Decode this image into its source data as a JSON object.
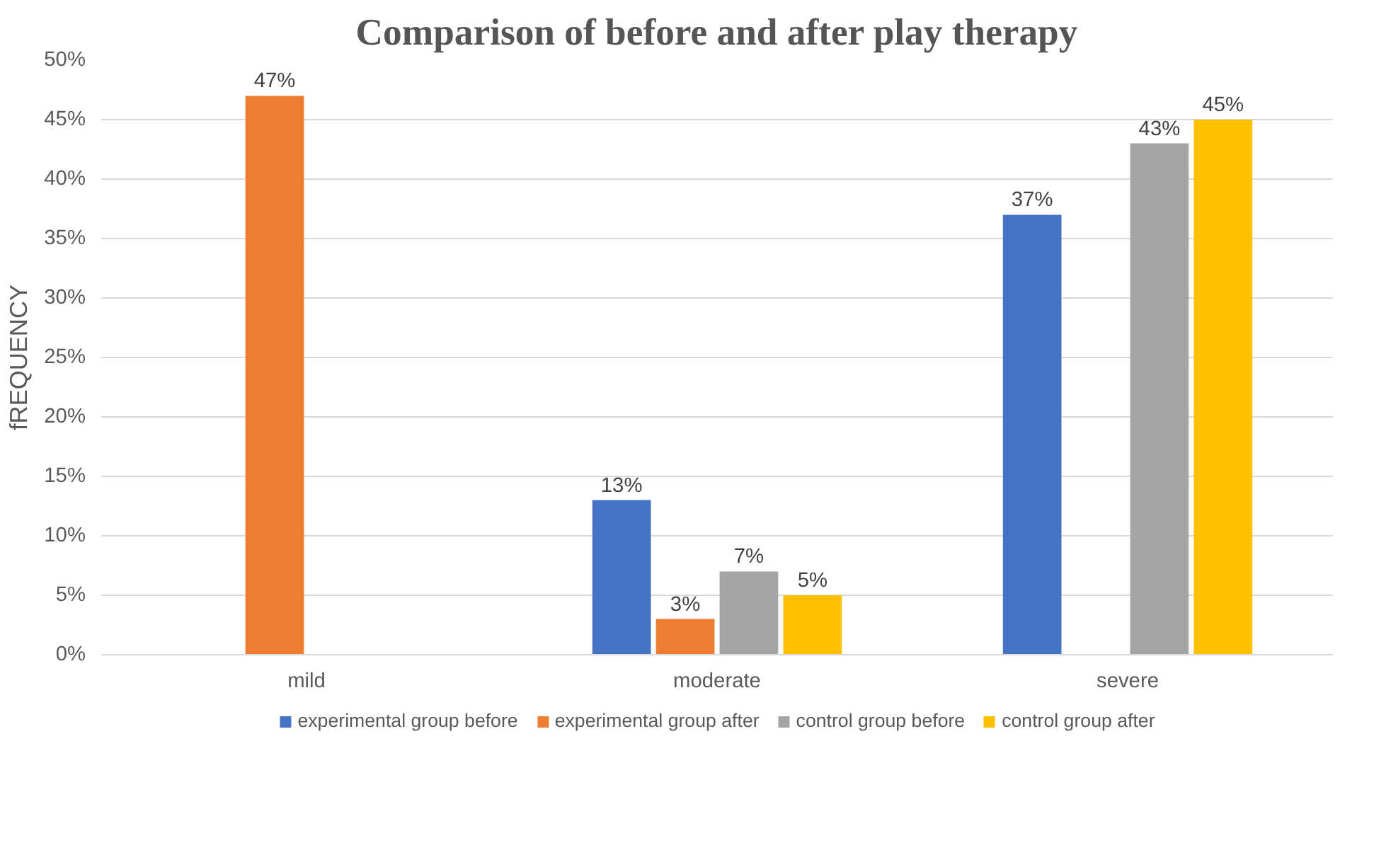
{
  "chart_data": {
    "type": "bar",
    "title": "Comparison of before and after play therapy",
    "ylabel": "fREQUENCY",
    "categories": [
      "mild",
      "moderate",
      "severe"
    ],
    "series": [
      {
        "name": "experimental group before",
        "color": "#4472c4",
        "values": [
          null,
          13,
          37
        ],
        "value_labels": [
          null,
          "13%",
          "37%"
        ]
      },
      {
        "name": "experimental group after",
        "color": "#ed7d31",
        "values": [
          47,
          3,
          null
        ],
        "value_labels": [
          "47%",
          "3%",
          null
        ]
      },
      {
        "name": "control group before",
        "color": "#a5a5a5",
        "values": [
          null,
          7,
          43
        ],
        "value_labels": [
          null,
          "7%",
          "43%"
        ]
      },
      {
        "name": "control group after",
        "color": "#ffc000",
        "values": [
          null,
          5,
          45
        ],
        "value_labels": [
          null,
          "5%",
          "45%"
        ]
      }
    ],
    "ylim": [
      0,
      50
    ],
    "yticks": [
      {
        "value": 0,
        "label": "0%"
      },
      {
        "value": 5,
        "label": "5%"
      },
      {
        "value": 10,
        "label": "10%"
      },
      {
        "value": 15,
        "label": "15%"
      },
      {
        "value": 20,
        "label": "20%"
      },
      {
        "value": 25,
        "label": "25%"
      },
      {
        "value": 30,
        "label": "30%"
      },
      {
        "value": 35,
        "label": "35%"
      },
      {
        "value": 40,
        "label": "40%"
      },
      {
        "value": 45,
        "label": "45%"
      },
      {
        "value": 50,
        "label": "50%"
      }
    ],
    "grid": "y",
    "legend": "bottom"
  }
}
